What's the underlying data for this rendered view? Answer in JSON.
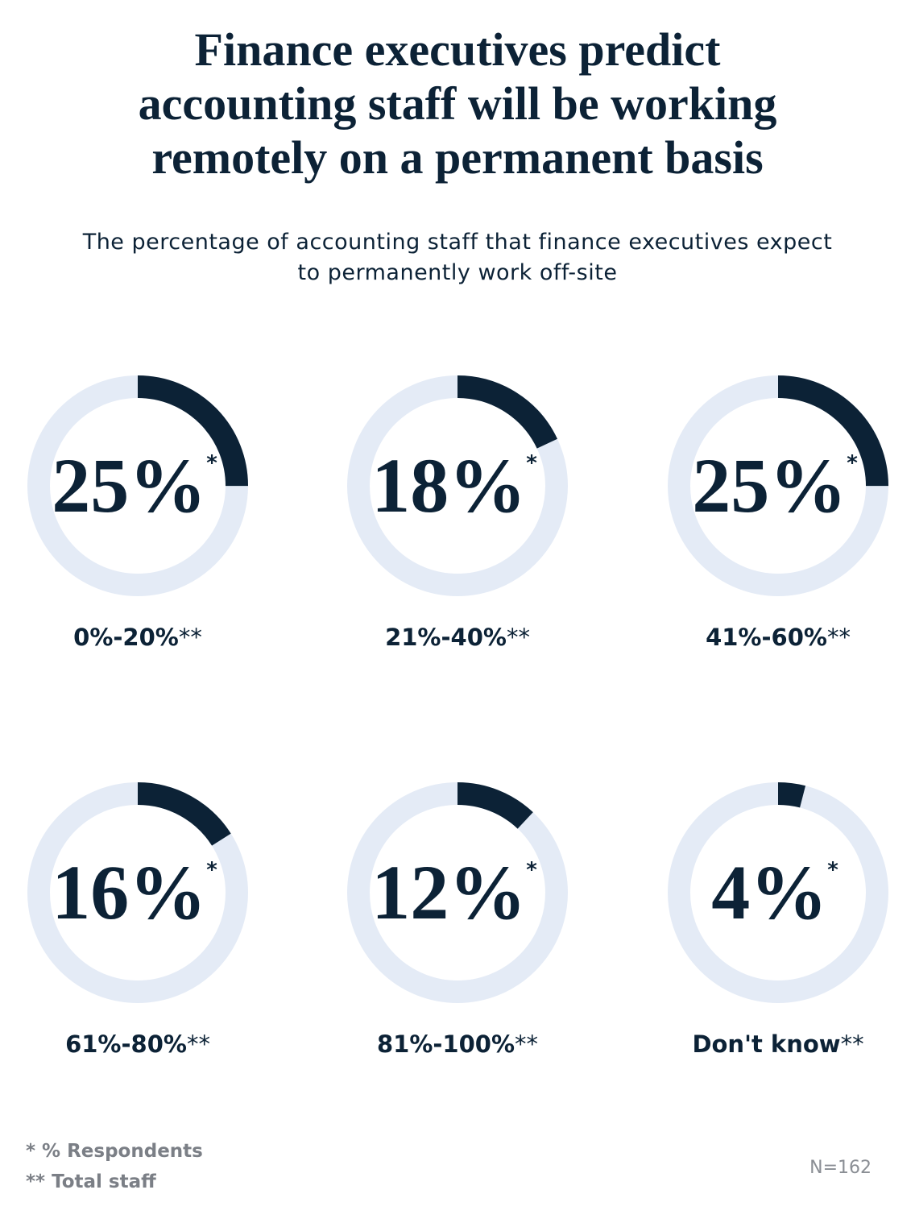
{
  "chart_data": {
    "type": "donut",
    "title": "Finance executives predict accounting staff will be working remotely on a permanent basis",
    "subtitle": "The percentage of accounting staff that finance executives expect to permanently work off-site",
    "categories": [
      "0%-20%",
      "21%-40%",
      "41%-60%",
      "61%-80%",
      "81%-100%",
      "Don't know"
    ],
    "values": [
      25,
      18,
      25,
      16,
      12,
      4
    ],
    "value_labels": [
      "25%",
      "18%",
      "25%",
      "16%",
      "12%",
      "4%"
    ],
    "value_marker": "*",
    "category_marker": "**",
    "ylim": [
      0,
      100
    ],
    "color": "#0c2236",
    "track_color": "#e4ebf6",
    "footnotes": [
      "* % Respondents",
      "** Total staff"
    ],
    "note": "N=162"
  }
}
